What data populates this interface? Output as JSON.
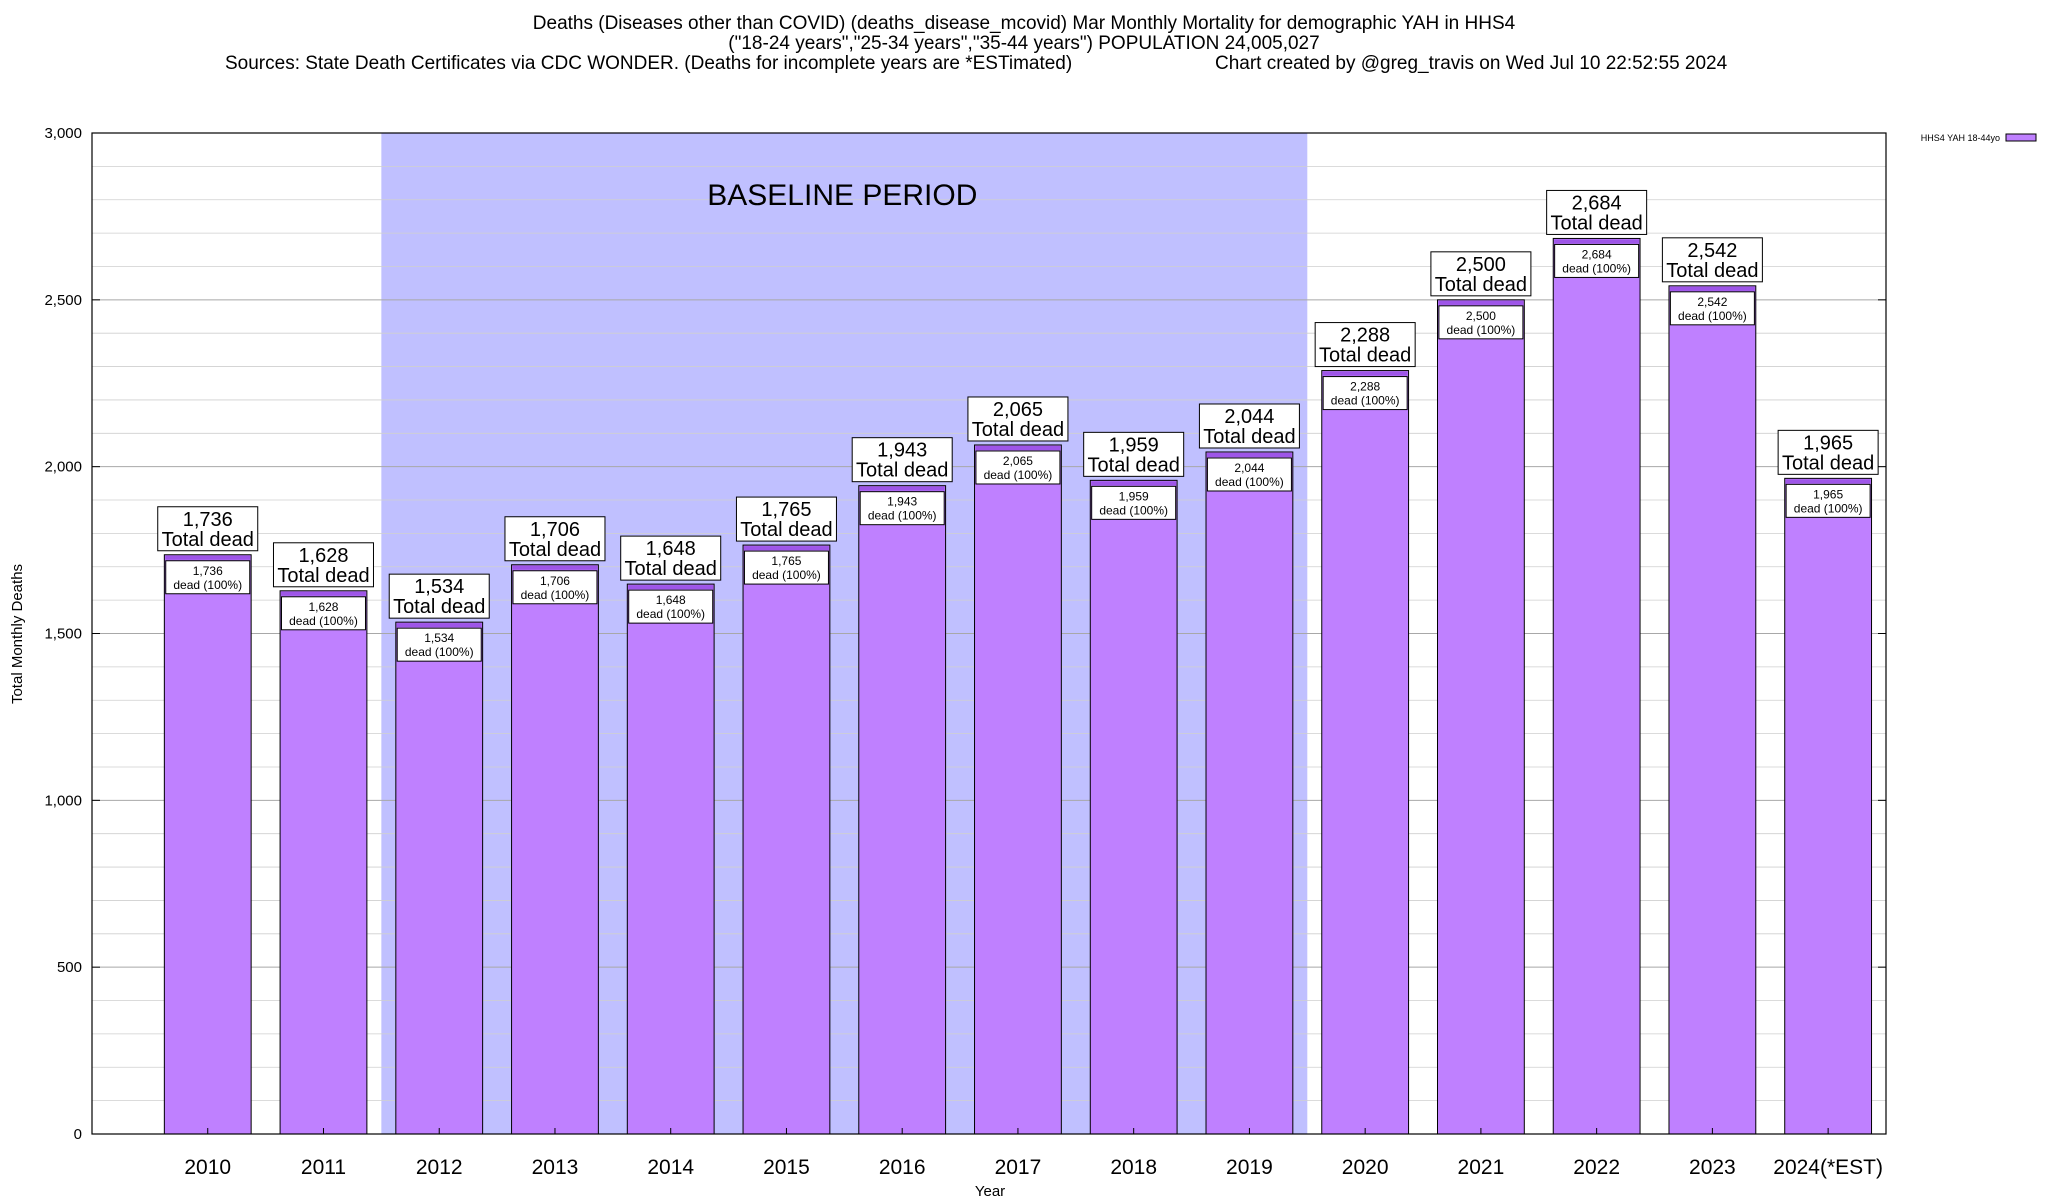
{
  "header": {
    "title_line1": "Deaths (Diseases other than COVID) (deaths_disease_mcovid) Mar Monthly Mortality for demographic YAH in HHS4",
    "title_line2": "(\"18-24 years\",\"25-34 years\",\"35-44 years\") POPULATION 24,005,027",
    "sources": "Sources: State Death Certificates via CDC WONDER. (Deaths for incomplete years are *ESTimated)",
    "credit": "Chart created by @greg_travis on Wed Jul 10 22:52:55 2024"
  },
  "chart_data": {
    "type": "bar",
    "title": "Deaths (Diseases other than COVID) (deaths_disease_mcovid) Mar Monthly Mortality for demographic YAH in HHS4",
    "xlabel": "Year",
    "ylabel": "Total Monthly Deaths",
    "ylim": [
      0,
      3000
    ],
    "yticks": [
      0,
      500,
      1000,
      1500,
      2000,
      2500,
      3000
    ],
    "ytick_labels": [
      "0",
      "500",
      "1,000",
      "1,500",
      "2,000",
      "2,500",
      "3,000"
    ],
    "grid": true,
    "legend_position": "top-right",
    "categories": [
      "2010",
      "2011",
      "2012",
      "2013",
      "2014",
      "2015",
      "2016",
      "2017",
      "2018",
      "2019",
      "2020",
      "2021",
      "2022",
      "2023",
      "2024(*EST)"
    ],
    "series": [
      {
        "name": "HHS4 YAH 18-44yo",
        "color": "#bf80ff",
        "values": [
          1736,
          1628,
          1534,
          1706,
          1648,
          1765,
          1943,
          2065,
          1959,
          2044,
          2288,
          2500,
          2684,
          2542,
          1965
        ]
      }
    ],
    "bar_top_labels": [
      "1,736",
      "1,628",
      "1,534",
      "1,706",
      "1,648",
      "1,765",
      "1,943",
      "2,065",
      "1,959",
      "2,044",
      "2,288",
      "2,500",
      "2,684",
      "2,542",
      "1,965"
    ],
    "total_label_suffix": "Total dead",
    "inner_label_suffix": "dead (100%)",
    "baseline_period": {
      "label": "BASELINE PERIOD",
      "from_category": "2012",
      "to_category": "2019",
      "color": "#c0c0ff"
    },
    "colors": {
      "bar_fill": "#bf80ff",
      "bar_cap": "#9e55e8",
      "grid": "#b0b0b0"
    }
  }
}
